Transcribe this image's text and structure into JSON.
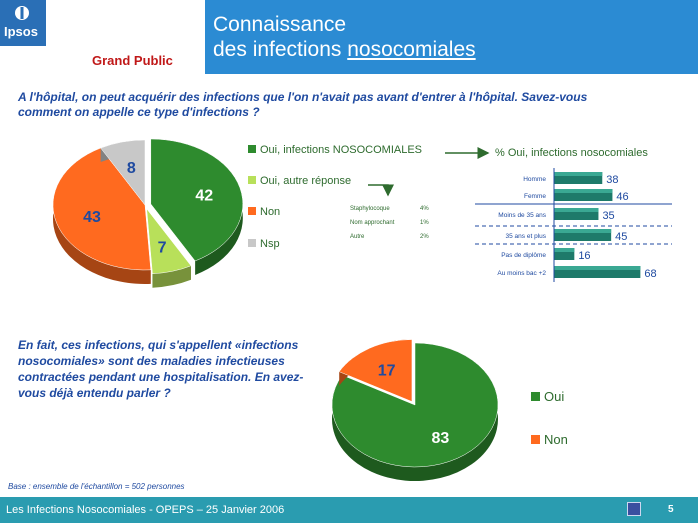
{
  "brand": {
    "name": "Ipsos",
    "audience": "Grand Public"
  },
  "header": {
    "title_line1": "Connaissance",
    "title_line2_pre": "des infections ",
    "title_line2_u": "nosocomiales"
  },
  "question1": "A l'hôpital, on peut acquérir des infections que l'on n'avait pas avant d'entrer à l'hôpital. Savez-vous comment on appelle ce type d'infections ?",
  "question2": "En fait, ces infections, qui s'appellent «infections nosocomiales» sont des maladies infectieuses contractées pendant une hospitalisation. En avez-vous déjà entendu parler ?",
  "colors": {
    "green_dark": "#2e8b2e",
    "green_light": "#b8e05a",
    "orange": "#ff6a1f",
    "grey": "#c8c8c8",
    "teal_bar": "#1e7a6a",
    "title_blue": "#2b8bd3",
    "footer": "#2a9cb0",
    "text_blue": "#1f4aa0",
    "legend_green": "#2e6b2e"
  },
  "chart_data": [
    {
      "type": "pie",
      "slices": [
        {
          "label": "Oui, infections NOSOCOMIALES",
          "value": 42,
          "color": "#2e8b2e"
        },
        {
          "label": "Oui, autre réponse",
          "value": 7,
          "color": "#b8e05a"
        },
        {
          "label": "Non",
          "value": 43,
          "color": "#ff6a1f"
        },
        {
          "label": "Nsp",
          "value": 8,
          "color": "#c8c8c8"
        }
      ],
      "sub_answers": [
        {
          "label": "Staphylocoque",
          "value": "4%"
        },
        {
          "label": "Nom approchant",
          "value": "1%"
        },
        {
          "label": "Autre",
          "value": "2%"
        }
      ]
    },
    {
      "type": "bar",
      "title": "% Oui, infections nosocomiales",
      "categories": [
        "Homme",
        "Femme",
        "Moins de 35 ans",
        "35 ans et plus",
        "Pas de diplôme",
        "Au moins bac +2"
      ],
      "values": [
        38,
        46,
        35,
        45,
        16,
        68
      ],
      "xlim": [
        0,
        100
      ]
    },
    {
      "type": "pie",
      "slices": [
        {
          "label": "Oui",
          "value": 83,
          "color": "#2e8b2e"
        },
        {
          "label": "Non",
          "value": 17,
          "color": "#ff6a1f"
        }
      ]
    }
  ],
  "base_note": "Base : ensemble de l'échantillon = 502 personnes",
  "footer": {
    "text": "Les Infections Nosocomiales - OPEPS – 25 Janvier 2006",
    "page": "5"
  }
}
